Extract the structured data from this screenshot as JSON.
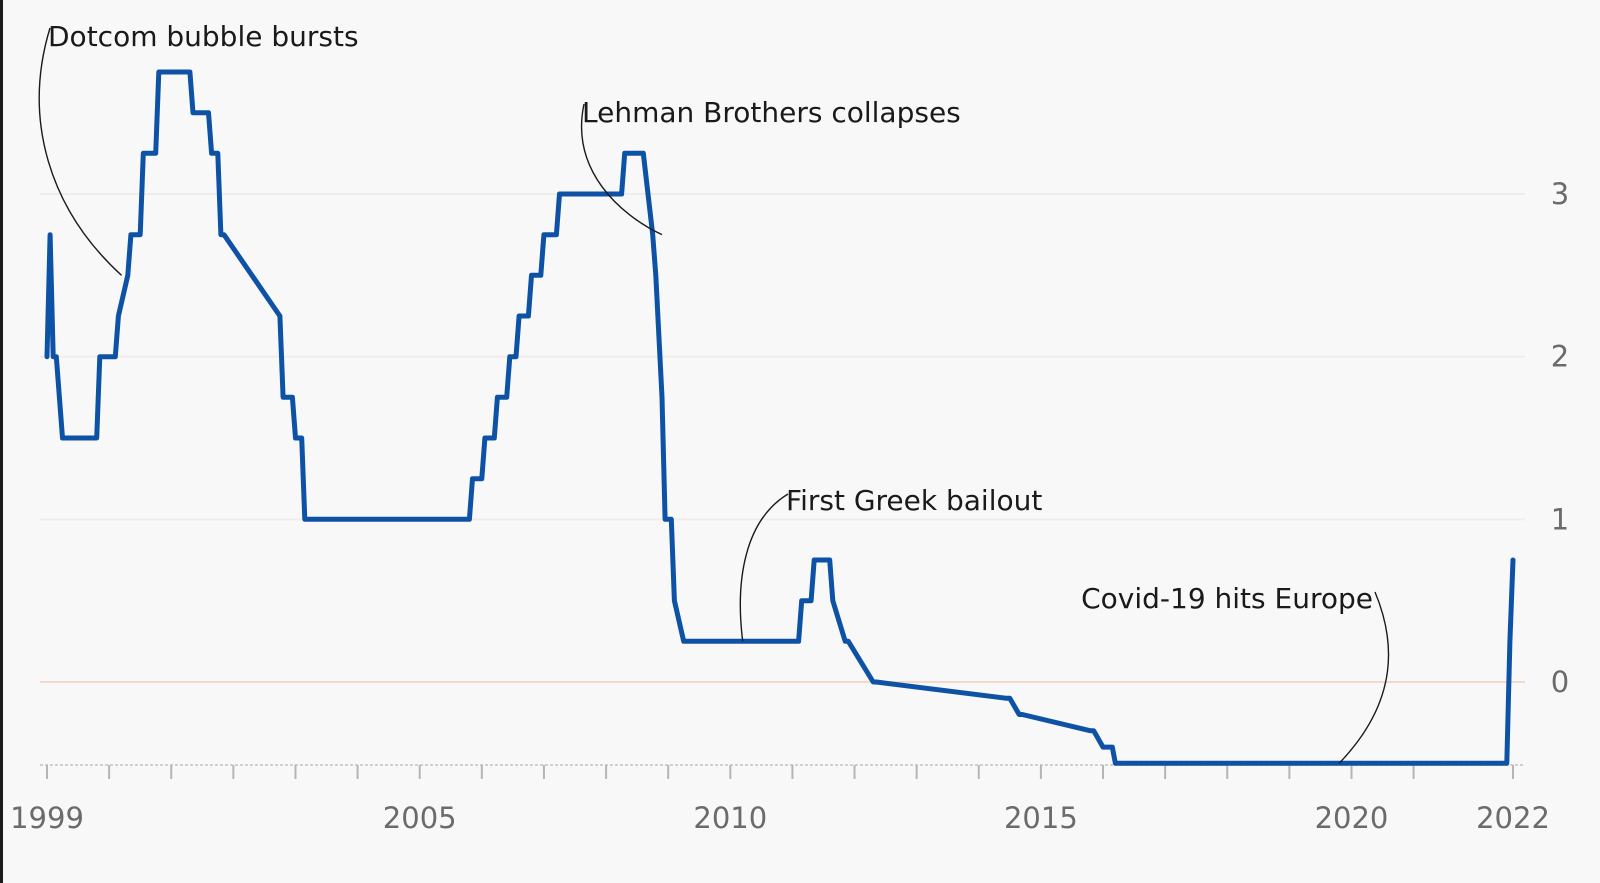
{
  "chart_data": {
    "type": "line",
    "title": "",
    "xlabel": "",
    "ylabel": "",
    "xlim": [
      1999.0,
      2022.7
    ],
    "ylim": [
      -0.5,
      3.75
    ],
    "grid": true,
    "x_ticks": [
      {
        "value": 1999,
        "label": "1999"
      },
      {
        "value": 2005,
        "label": "2005"
      },
      {
        "value": 2010,
        "label": "2010"
      },
      {
        "value": 2015,
        "label": "2015"
      },
      {
        "value": 2020,
        "label": "2020"
      },
      {
        "value": 2022.6,
        "label": "2022"
      }
    ],
    "y_ticks": [
      {
        "value": 0,
        "label": "0"
      },
      {
        "value": 1,
        "label": "1"
      },
      {
        "value": 2,
        "label": "2"
      },
      {
        "value": 3,
        "label": "3"
      }
    ],
    "series": [
      {
        "color": "#0d52a5",
        "x": [
          1999.0,
          1999.05,
          1999.1,
          1999.15,
          1999.25,
          1999.8,
          1999.85,
          2000.1,
          2000.15,
          2000.3,
          2000.35,
          2000.5,
          2000.55,
          2000.75,
          2000.8,
          2001.3,
          2001.35,
          2001.6,
          2001.65,
          2001.75,
          2001.8,
          2001.85,
          2002.75,
          2002.8,
          2002.95,
          2003.0,
          2003.1,
          2003.15,
          2003.4,
          2003.45,
          2005.8,
          2005.85,
          2006.0,
          2006.05,
          2006.2,
          2006.25,
          2006.4,
          2006.45,
          2006.55,
          2006.6,
          2006.75,
          2006.8,
          2006.95,
          2007.0,
          2007.2,
          2007.25,
          2008.25,
          2008.3,
          2008.55,
          2008.6,
          2008.75,
          2008.8,
          2008.9,
          2008.95,
          2009.05,
          2009.1,
          2009.25,
          2009.3,
          2011.1,
          2011.15,
          2011.3,
          2011.35,
          2011.6,
          2011.65,
          2011.85,
          2011.9,
          2012.3,
          2012.35,
          2014.45,
          2014.5,
          2014.65,
          2014.7,
          2015.8,
          2015.85,
          2016.0,
          2016.05,
          2016.15,
          2016.2,
          2019.7,
          2019.75,
          2022.5,
          2022.55,
          2022.6
        ],
        "y": [
          2.0,
          2.75,
          2.0,
          2.0,
          1.5,
          1.5,
          2.0,
          2.0,
          2.25,
          2.5,
          2.75,
          2.75,
          3.25,
          3.25,
          3.75,
          3.75,
          3.5,
          3.5,
          3.25,
          3.25,
          2.75,
          2.75,
          2.25,
          1.75,
          1.75,
          1.5,
          1.5,
          1.0,
          1.0,
          1.0,
          1.0,
          1.25,
          1.25,
          1.5,
          1.5,
          1.75,
          1.75,
          2.0,
          2.0,
          2.25,
          2.25,
          2.5,
          2.5,
          2.75,
          2.75,
          3.0,
          3.0,
          3.25,
          3.25,
          3.25,
          2.75,
          2.5,
          1.75,
          1.0,
          1.0,
          0.5,
          0.25,
          0.25,
          0.25,
          0.5,
          0.5,
          0.75,
          0.75,
          0.5,
          0.25,
          0.25,
          0.0,
          0.0,
          -0.1,
          -0.1,
          -0.2,
          -0.2,
          -0.3,
          -0.3,
          -0.4,
          -0.4,
          -0.4,
          -0.5,
          -0.5,
          -0.5,
          -0.5,
          0.25,
          0.75
        ]
      }
    ],
    "annotations": [
      {
        "text": "Dotcom bubble bursts",
        "x": 2000.2,
        "y": 2.5
      },
      {
        "text": "Lehman Brothers collapses",
        "x": 2008.9,
        "y": 2.75
      },
      {
        "text": "First Greek bailout",
        "x": 2010.2,
        "y": 0.25
      },
      {
        "text": "Covid-19 hits Europe",
        "x": 2019.8,
        "y": -0.5
      }
    ]
  }
}
